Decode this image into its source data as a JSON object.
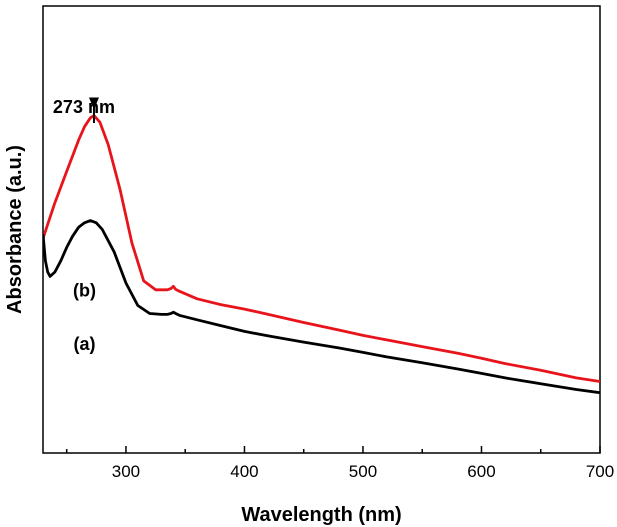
{
  "chart_data": {
    "type": "line",
    "title": "",
    "xlabel": "Wavelength (nm)",
    "ylabel": "Absorbance (a.u.)",
    "xlim": [
      230,
      700
    ],
    "ylim": [
      0,
      1
    ],
    "x_ticks": [
      300,
      400,
      500,
      600,
      700
    ],
    "x_minor_step": 50,
    "y_ticks_shown": false,
    "grid": false,
    "series": [
      {
        "name": "(b)",
        "color": "#e8141b",
        "x": [
          230,
          240,
          250,
          260,
          265,
          270,
          273,
          278,
          285,
          295,
          305,
          315,
          325,
          335,
          338,
          340,
          342,
          345,
          360,
          380,
          400,
          420,
          450,
          480,
          500,
          520,
          550,
          580,
          600,
          620,
          650,
          680,
          700
        ],
        "y": [
          0.48,
          0.56,
          0.63,
          0.7,
          0.73,
          0.75,
          0.755,
          0.74,
          0.69,
          0.59,
          0.47,
          0.385,
          0.365,
          0.365,
          0.368,
          0.373,
          0.366,
          0.362,
          0.345,
          0.332,
          0.322,
          0.31,
          0.292,
          0.275,
          0.263,
          0.253,
          0.238,
          0.223,
          0.212,
          0.2,
          0.185,
          0.168,
          0.16
        ]
      },
      {
        "name": "(a)",
        "color": "#000000",
        "x": [
          230,
          232,
          234,
          236,
          240,
          245,
          250,
          255,
          260,
          265,
          270,
          275,
          280,
          290,
          300,
          310,
          320,
          330,
          335,
          338,
          340,
          342,
          345,
          360,
          380,
          400,
          420,
          450,
          480,
          500,
          520,
          550,
          580,
          600,
          620,
          650,
          680,
          700
        ],
        "y": [
          0.49,
          0.43,
          0.405,
          0.395,
          0.405,
          0.43,
          0.46,
          0.485,
          0.505,
          0.515,
          0.52,
          0.515,
          0.5,
          0.45,
          0.38,
          0.33,
          0.312,
          0.31,
          0.31,
          0.312,
          0.315,
          0.312,
          0.308,
          0.298,
          0.285,
          0.272,
          0.262,
          0.248,
          0.235,
          0.225,
          0.215,
          0.202,
          0.188,
          0.178,
          0.168,
          0.155,
          0.142,
          0.135
        ]
      }
    ],
    "annotations": [
      {
        "text": "273 nm",
        "kind": "arrow-label",
        "x": 273,
        "y": 0.755
      },
      {
        "text": "(b)",
        "kind": "series-label",
        "x": 265,
        "y": 0.35
      },
      {
        "text": "(a)",
        "kind": "series-label",
        "x": 265,
        "y": 0.23
      }
    ]
  }
}
